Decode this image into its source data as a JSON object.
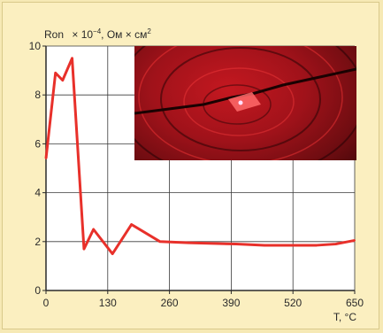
{
  "chart_data": {
    "type": "line",
    "title": "",
    "ylabel_prefix": "Ron",
    "ylabel_units": " × 10",
    "ylabel_exp": "−4",
    "ylabel_suffix": ", Ом × см",
    "ylabel_sup2": "2",
    "xlabel": "T, °C",
    "xlim": [
      0,
      650
    ],
    "ylim": [
      0,
      10
    ],
    "x_ticks": [
      "0",
      "130",
      "260",
      "390",
      "520",
      "650"
    ],
    "y_ticks": [
      "0",
      "2",
      "4",
      "6",
      "8",
      "10"
    ],
    "grid": true,
    "series": [
      {
        "color": "#e8302a",
        "x": [
          0,
          20,
          35,
          55,
          80,
          100,
          140,
          180,
          240,
          300,
          400,
          460,
          520,
          570,
          610,
          650
        ],
        "y": [
          5.4,
          8.9,
          8.6,
          9.5,
          1.7,
          2.5,
          1.5,
          2.7,
          2.0,
          1.95,
          1.9,
          1.85,
          1.85,
          1.85,
          1.9,
          2.05
        ]
      }
    ],
    "inset_photo": "red-wafer-photograph"
  }
}
